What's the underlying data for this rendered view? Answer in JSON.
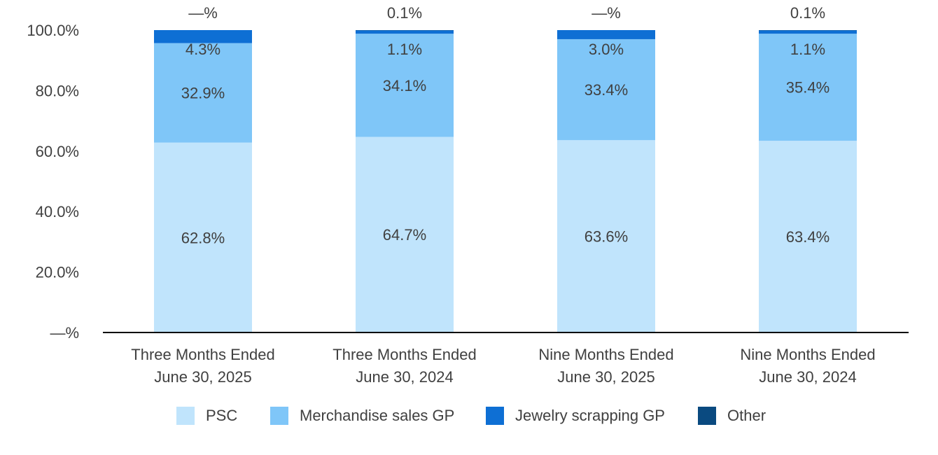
{
  "chart_data": {
    "type": "bar",
    "stacked": true,
    "categories": [
      [
        "Three Months Ended",
        "June 30, 2025"
      ],
      [
        "Three Months Ended",
        "June 30, 2024"
      ],
      [
        "Nine Months Ended",
        "June 30, 2025"
      ],
      [
        "Nine Months Ended",
        "June 30, 2024"
      ]
    ],
    "series": [
      {
        "name": "PSC",
        "color": "#c0e4fc",
        "values": [
          62.8,
          64.7,
          63.6,
          63.4
        ],
        "labels": [
          "62.8%",
          "64.7%",
          "63.6%",
          "63.4%"
        ]
      },
      {
        "name": "Merchandise sales GP",
        "color": "#7fc6f8",
        "values": [
          32.9,
          34.1,
          33.4,
          35.4
        ],
        "labels": [
          "32.9%",
          "34.1%",
          "33.4%",
          "35.4%"
        ]
      },
      {
        "name": "Jewelry scrapping GP",
        "color": "#0e6fd4",
        "values": [
          4.3,
          1.1,
          3.0,
          1.1
        ],
        "labels": [
          "4.3%",
          "1.1%",
          "3.0%",
          "1.1%"
        ]
      },
      {
        "name": "Other",
        "color": "#0a4a80",
        "values": [
          0.0,
          0.1,
          0.0,
          0.1
        ],
        "labels": [
          "—%",
          "0.1%",
          "—%",
          "0.1%"
        ]
      }
    ],
    "yticks": [
      "—%",
      "20.0%",
      "40.0%",
      "60.0%",
      "80.0%",
      "100.0%"
    ],
    "ylim": [
      0,
      100
    ],
    "grid": false,
    "legend_position": "bottom"
  }
}
